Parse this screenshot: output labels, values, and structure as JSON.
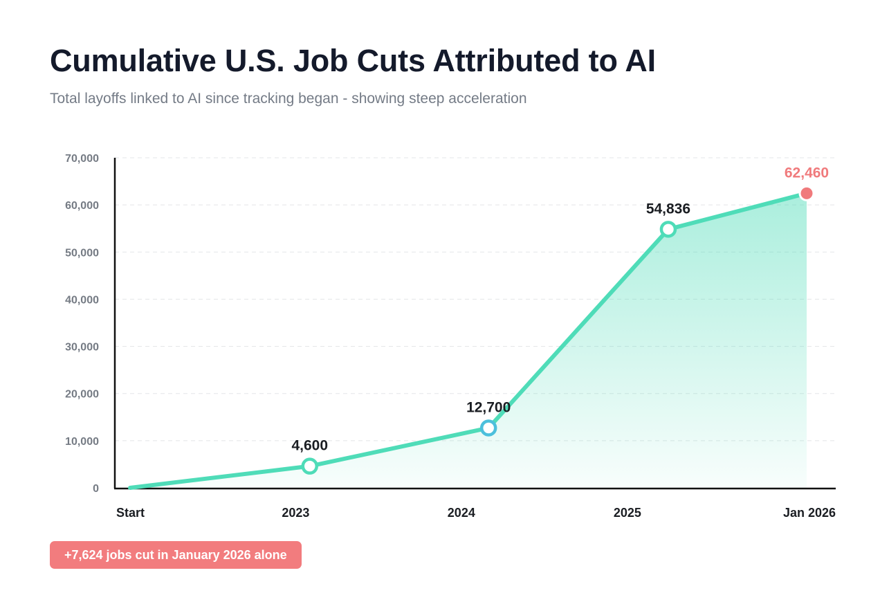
{
  "chart_data": {
    "type": "line",
    "title": "Cumulative U.S. Job Cuts Attributed to AI",
    "subtitle": "Total layoffs linked to AI since tracking began - showing steep acceleration",
    "xlabel": "",
    "ylabel": "",
    "ylim": [
      0,
      70000
    ],
    "yticks": [
      {
        "value": 0,
        "label": "0"
      },
      {
        "value": 10000,
        "label": "10,000"
      },
      {
        "value": 20000,
        "label": "20,000"
      },
      {
        "value": 30000,
        "label": "30,000"
      },
      {
        "value": 40000,
        "label": "40,000"
      },
      {
        "value": 50000,
        "label": "50,000"
      },
      {
        "value": 60000,
        "label": "60,000"
      },
      {
        "value": 70000,
        "label": "70,000"
      }
    ],
    "xlim": [
      "2022-01-01",
      "2026-01-31"
    ],
    "xticks": [
      {
        "date": "2022-01-01",
        "label": "Start"
      },
      {
        "date": "2023-01-01",
        "label": "2023"
      },
      {
        "date": "2024-01-01",
        "label": "2024"
      },
      {
        "date": "2025-01-01",
        "label": "2025"
      },
      {
        "date": "2026-01-31",
        "label": "Jan 2026"
      }
    ],
    "grid": true,
    "area_fill": true,
    "series": [
      {
        "points": [
          {
            "date": "2022-01-01",
            "value": 0,
            "label": ""
          },
          {
            "date": "2023-02-01",
            "value": 4600,
            "label": "4,600"
          },
          {
            "date": "2024-03-01",
            "value": 12700,
            "label": "12,700"
          },
          {
            "date": "2025-04-01",
            "value": 54836,
            "label": "54,836"
          },
          {
            "date": "2026-01-31",
            "value": 62460,
            "label": "62,460"
          }
        ]
      }
    ],
    "colors": {
      "line": "#4fdcb8",
      "marker_alt": "#4cc0dc",
      "highlight": "#f07a7c",
      "axis": "#111111",
      "grid": "#e3e5e8",
      "tick_text": "#757b84",
      "label_text": "#1a1d22"
    }
  },
  "badge": {
    "text": "+7,624 jobs cut in January 2026 alone"
  }
}
